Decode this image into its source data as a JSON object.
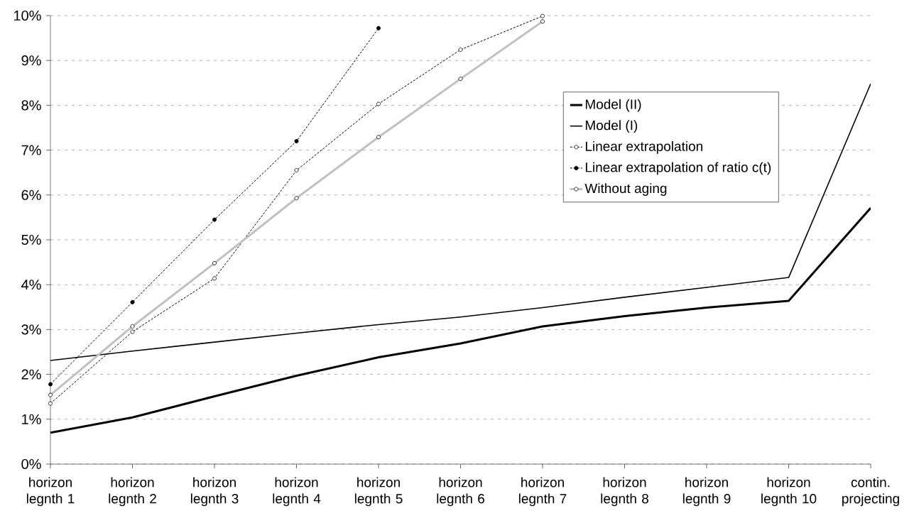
{
  "chart_data": {
    "type": "line",
    "categories": [
      "horizon legnth 1",
      "horizon legnth 2",
      "horizon legnth 3",
      "horizon legnth 4",
      "horizon legnth 5",
      "horizon legnth 6",
      "horizon legnth 7",
      "horizon legnth 8",
      "horizon legnth 9",
      "horizon legnth 10",
      "contin. projecting"
    ],
    "series": [
      {
        "name": "Model (II)",
        "color": "#000000",
        "marker": "none",
        "line_style": "solid",
        "values": [
          0.7,
          1.04,
          1.51,
          1.97,
          2.38,
          2.69,
          3.07,
          3.3,
          3.49,
          3.64,
          5.71
        ]
      },
      {
        "name": "Model (I)",
        "color": "#000000",
        "marker": "none",
        "line_style": "solid",
        "values": [
          2.31,
          2.52,
          2.72,
          2.92,
          3.11,
          3.28,
          3.49,
          3.72,
          3.94,
          4.16,
          8.48
        ]
      },
      {
        "name": "Linear extrapolation",
        "color": "#000000",
        "marker": "circle",
        "line_style": "dotted",
        "values": [
          1.35,
          2.95,
          4.14,
          6.55,
          8.03,
          9.24,
          9.99,
          null,
          null,
          null,
          null
        ]
      },
      {
        "name": "Linear extrapolation of ratio c(t)",
        "color": "#000000",
        "marker": "circle",
        "line_style": "dotted",
        "values": [
          1.78,
          3.61,
          5.45,
          7.2,
          9.72,
          null,
          null,
          null,
          null,
          null,
          null
        ]
      },
      {
        "name": "Without aging",
        "color": "#c0c0c0",
        "marker": "circle",
        "line_style": "solid",
        "values": [
          1.54,
          3.07,
          4.48,
          5.93,
          7.29,
          8.59,
          9.87,
          null,
          null,
          null,
          null
        ]
      }
    ],
    "ylim": [
      0,
      10
    ],
    "yticks": [
      {
        "value": 0,
        "label": "0%"
      },
      {
        "value": 1,
        "label": "1%"
      },
      {
        "value": 2,
        "label": "2%"
      },
      {
        "value": 3,
        "label": "3%"
      },
      {
        "value": 4,
        "label": "4%"
      },
      {
        "value": 5,
        "label": "5%"
      },
      {
        "value": 6,
        "label": "6%"
      },
      {
        "value": 7,
        "label": "7%"
      },
      {
        "value": 8,
        "label": "8%"
      },
      {
        "value": 9,
        "label": "9%"
      },
      {
        "value": 10,
        "label": "10%"
      }
    ],
    "grid": "y",
    "legend": "top right"
  }
}
